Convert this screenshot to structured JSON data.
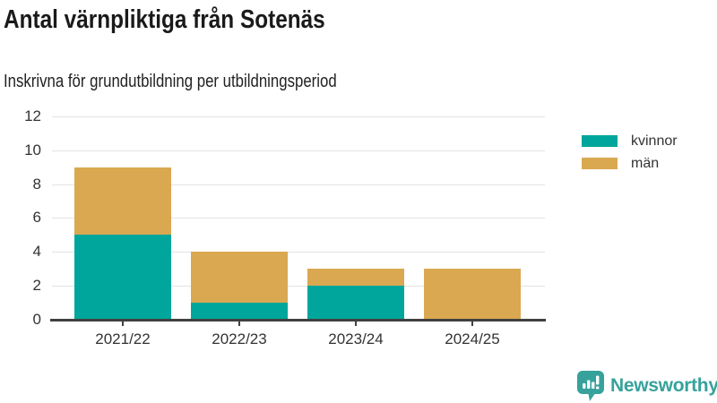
{
  "chart_data": {
    "type": "bar",
    "stacked": true,
    "title": "Antal värnpliktiga från Sotenäs",
    "subtitle": "Inskrivna för grundutbildning per utbildningsperiod",
    "categories": [
      "2021/22",
      "2022/23",
      "2023/24",
      "2024/25"
    ],
    "series": [
      {
        "name": "kvinnor",
        "color": "#00A69B",
        "values": [
          5,
          1,
          2,
          0
        ]
      },
      {
        "name": "män",
        "color": "#D9A851",
        "values": [
          4,
          3,
          1,
          3
        ]
      }
    ],
    "totals": [
      9,
      4,
      3,
      3
    ],
    "xlabel": "",
    "ylabel": "",
    "ylim": [
      0,
      12
    ],
    "yticks": [
      0,
      2,
      4,
      6,
      8,
      10,
      12
    ],
    "grid": true,
    "legend_position": "right",
    "colors": {
      "gridline": "#e3e3e3",
      "axis": "#404040",
      "text": "#333333"
    }
  },
  "footer": {
    "brand_name": "Newsworthy",
    "brand_color": "#36A29B",
    "logo_icon": "bar-chart-speech-bubble"
  }
}
